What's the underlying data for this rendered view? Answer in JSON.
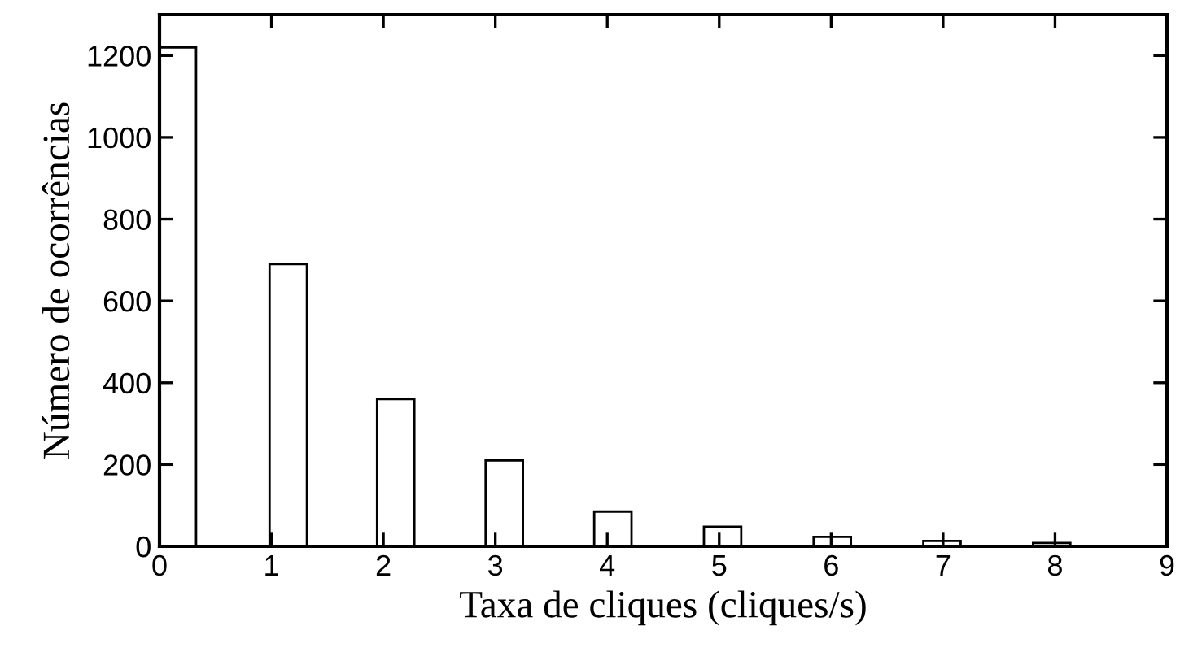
{
  "chart_data": {
    "type": "bar",
    "xlabel": "Taxa de cliques (cliques/s)",
    "ylabel": "Número de ocorrências",
    "x": [
      0.16,
      1.15,
      2.11,
      3.08,
      4.05,
      5.03,
      6.01,
      6.99,
      7.97
    ],
    "series": [
      {
        "color": "#000000",
        "values": [
          1220,
          690,
          360,
          210,
          85,
          48,
          23,
          13,
          8
        ]
      }
    ],
    "xlim": [
      0,
      9
    ],
    "xticks": [
      0,
      1,
      2,
      3,
      4,
      5,
      6,
      7,
      8,
      9
    ],
    "ylim": [
      0,
      1300
    ],
    "yticks": [
      0,
      200,
      400,
      600,
      800,
      1000,
      1200
    ],
    "grid": false,
    "legend": false
  }
}
